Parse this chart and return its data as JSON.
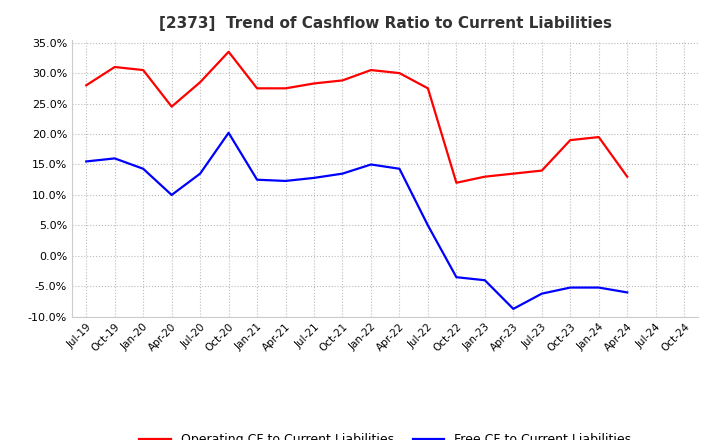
{
  "title": "[2373]  Trend of Cashflow Ratio to Current Liabilities",
  "x_labels": [
    "Jul-19",
    "Oct-19",
    "Jan-20",
    "Apr-20",
    "Jul-20",
    "Oct-20",
    "Jan-21",
    "Apr-21",
    "Jul-21",
    "Oct-21",
    "Jan-22",
    "Apr-22",
    "Jul-22",
    "Oct-22",
    "Jan-23",
    "Apr-23",
    "Jul-23",
    "Oct-23",
    "Jan-24",
    "Apr-24",
    "Jul-24",
    "Oct-24"
  ],
  "operating_cf": [
    0.28,
    0.31,
    0.305,
    0.245,
    0.285,
    0.335,
    0.275,
    0.275,
    0.283,
    0.288,
    0.305,
    0.3,
    0.275,
    0.12,
    0.13,
    0.135,
    0.14,
    0.19,
    0.195,
    0.13,
    null,
    null
  ],
  "free_cf": [
    0.155,
    0.16,
    0.143,
    0.1,
    0.135,
    0.202,
    0.125,
    0.123,
    0.128,
    0.135,
    0.15,
    0.143,
    0.05,
    -0.035,
    -0.04,
    -0.087,
    -0.062,
    -0.052,
    -0.052,
    -0.06,
    null,
    null
  ],
  "operating_color": "#FF0000",
  "free_color": "#0000FF",
  "ylim": [
    -0.1,
    0.355
  ],
  "yticks": [
    -0.1,
    -0.05,
    0.0,
    0.05,
    0.1,
    0.15,
    0.2,
    0.25,
    0.3,
    0.35
  ],
  "legend_operating": "Operating CF to Current Liabilities",
  "legend_free": "Free CF to Current Liabilities",
  "background_color": "#FFFFFF",
  "grid_color": "#BBBBBB"
}
